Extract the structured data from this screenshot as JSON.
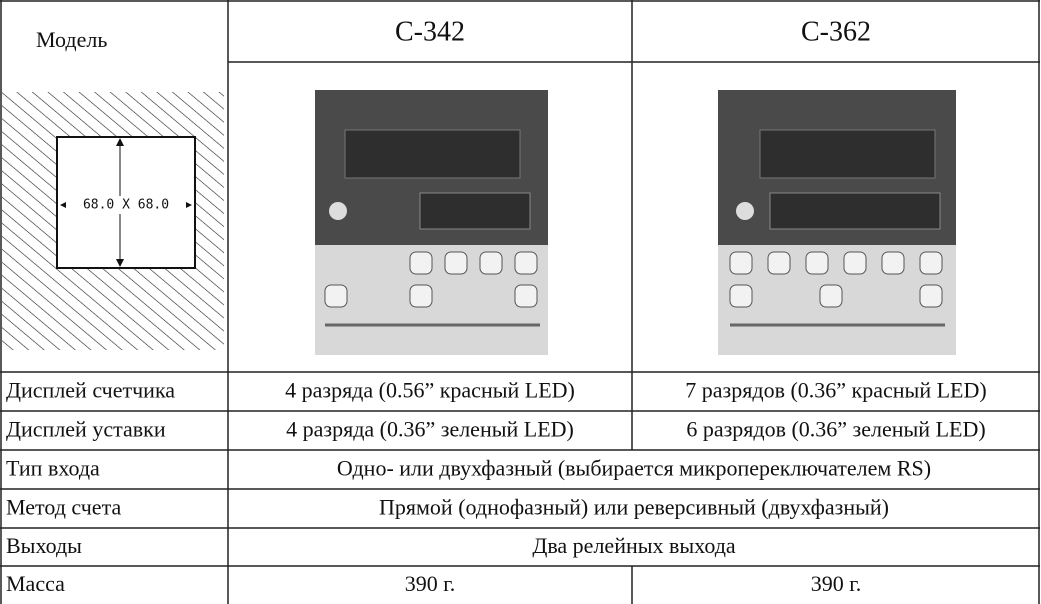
{
  "header": {
    "label": "Модель",
    "models": [
      "С-342",
      "С-362"
    ]
  },
  "diagram": {
    "dimension": "68.0 X 68.0"
  },
  "table": {
    "rows": [
      [
        "Дисплей счетчика",
        "4 разряда (0.56” красный LED)",
        "7 разрядов (0.36” красный LED)"
      ],
      [
        "Дисплей уставки",
        "4 разряда (0.36” зеленый LED)",
        "6 разрядов (0.36” зеленый LED)"
      ],
      [
        "Тип входа",
        "Одно- или двухфазный (выбирается микропереключателем RS)"
      ],
      [
        "Метод счета",
        "Прямой (однофазный) или реверсивный (двухфазный)"
      ],
      [
        "Выходы",
        "Два релейных выхода"
      ],
      [
        "Масса",
        "390 г.",
        "390 г."
      ]
    ]
  }
}
